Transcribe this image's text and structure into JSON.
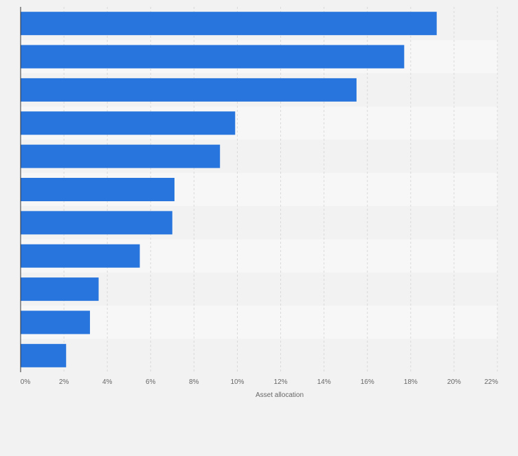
{
  "chart_data": {
    "type": "bar",
    "orientation": "horizontal",
    "categories": [
      "",
      "",
      "",
      "",
      "",
      "",
      "",
      "",
      "",
      "",
      ""
    ],
    "values": [
      19.2,
      17.7,
      15.5,
      9.9,
      9.2,
      7.1,
      7.0,
      5.5,
      3.6,
      3.2,
      2.1
    ],
    "xlabel": "Asset allocation",
    "xlim": [
      0,
      22
    ],
    "x_ticks": [
      "0%",
      "2%",
      "4%",
      "6%",
      "8%",
      "10%",
      "12%",
      "14%",
      "16%",
      "18%",
      "20%",
      "22%"
    ],
    "grid": true,
    "legend": "none"
  },
  "colors": {
    "bar": "#2876dd",
    "band_dark": "#f2f2f2",
    "band_light": "#f7f7f7",
    "grid": "#d9d9d9",
    "axis": "#333333",
    "text": "#666666"
  }
}
